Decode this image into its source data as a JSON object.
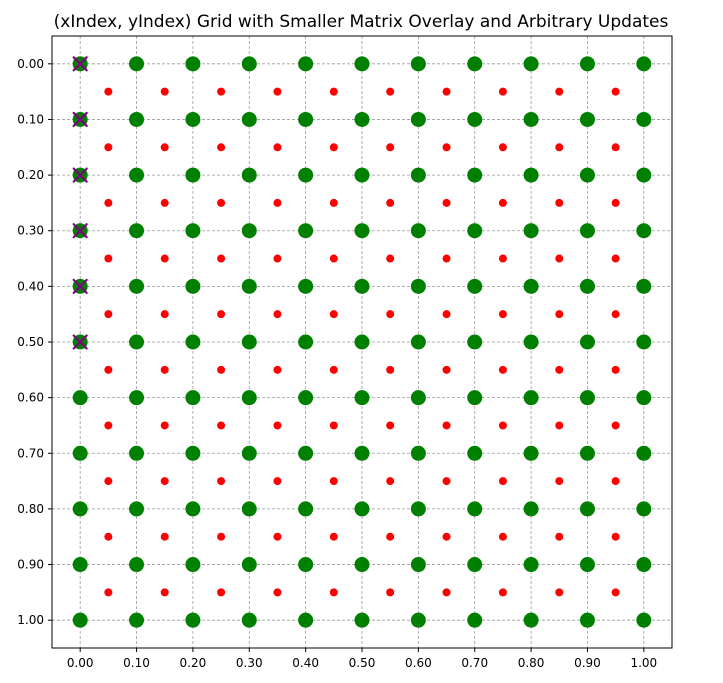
{
  "chart_data": {
    "type": "scatter",
    "title": "(xIndex, yIndex) Grid with Smaller Matrix Overlay and Arbitrary Updates",
    "xlabel": "",
    "ylabel": "",
    "xlim": [
      -0.05,
      1.05
    ],
    "ylim": [
      1.05,
      -0.05
    ],
    "y_inverted": true,
    "grid": true,
    "grid_style": "dashed",
    "x_ticks": [
      0.0,
      0.1,
      0.2,
      0.3,
      0.4,
      0.5,
      0.6,
      0.7,
      0.8,
      0.9,
      1.0
    ],
    "x_tick_labels": [
      "0.00",
      "0.10",
      "0.20",
      "0.30",
      "0.40",
      "0.50",
      "0.60",
      "0.70",
      "0.80",
      "0.90",
      "1.00"
    ],
    "y_ticks": [
      0.0,
      0.1,
      0.2,
      0.3,
      0.4,
      0.5,
      0.6,
      0.7,
      0.8,
      0.9,
      1.0
    ],
    "y_tick_labels": [
      "0.00",
      "0.10",
      "0.20",
      "0.30",
      "0.40",
      "0.50",
      "0.60",
      "0.70",
      "0.80",
      "0.90",
      "1.00"
    ],
    "series": [
      {
        "marker": "large-circle",
        "color": "#008000",
        "x_values": [
          0.0,
          0.1,
          0.2,
          0.3,
          0.4,
          0.5,
          0.6,
          0.7,
          0.8,
          0.9,
          1.0
        ],
        "y_values": [
          0.0,
          0.1,
          0.2,
          0.3,
          0.4,
          0.5,
          0.6,
          0.7,
          0.8,
          0.9,
          1.0
        ],
        "layout": "full-grid"
      },
      {
        "marker": "small-circle",
        "color": "#ff0000",
        "x_values": [
          0.05,
          0.15,
          0.25,
          0.35,
          0.45,
          0.55,
          0.65,
          0.75,
          0.85,
          0.95
        ],
        "y_values": [
          0.05,
          0.15,
          0.25,
          0.35,
          0.45,
          0.55,
          0.65,
          0.75,
          0.85,
          0.95
        ],
        "layout": "full-grid"
      },
      {
        "marker": "x",
        "color": "#800080",
        "points": [
          {
            "x": 0.0,
            "y": 0.0
          },
          {
            "x": 0.0,
            "y": 0.1
          },
          {
            "x": 0.0,
            "y": 0.2
          },
          {
            "x": 0.0,
            "y": 0.3
          },
          {
            "x": 0.0,
            "y": 0.4
          },
          {
            "x": 0.0,
            "y": 0.5
          }
        ]
      }
    ]
  }
}
